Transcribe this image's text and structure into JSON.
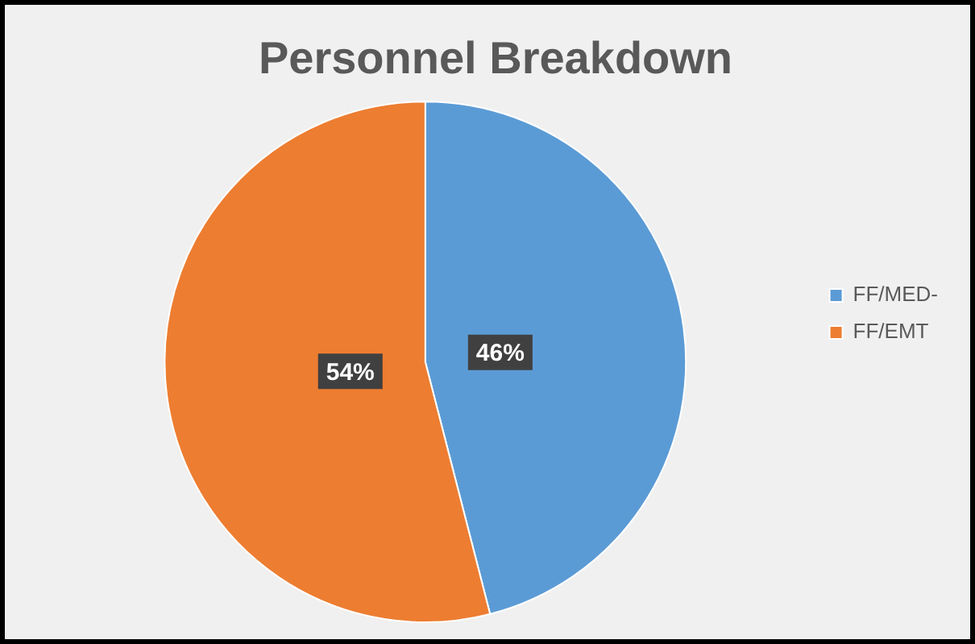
{
  "chart_data": {
    "type": "pie",
    "title": "Personnel Breakdown",
    "categories": [
      "FF/MED-",
      "FF/EMT"
    ],
    "values": [
      46,
      54
    ],
    "colors": [
      "#5b9bd5",
      "#ed7d31"
    ],
    "value_labels": [
      "46%",
      "54%"
    ],
    "legend": "right"
  }
}
